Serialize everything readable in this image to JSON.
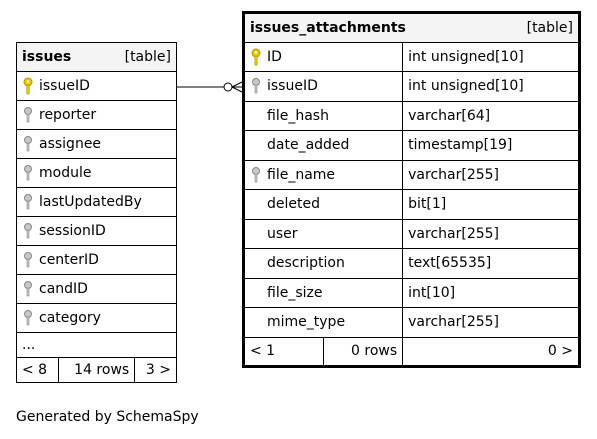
{
  "issues": {
    "name": "issues",
    "kind": "[table]",
    "columns": [
      "issueID",
      "reporter",
      "assignee",
      "module",
      "lastUpdatedBy",
      "sessionID",
      "centerID",
      "candID",
      "category"
    ],
    "more": "...",
    "footer": {
      "prev": "< 8",
      "rows": "14 rows",
      "next": "3 >"
    }
  },
  "issues_attachments": {
    "name": "issues_attachments",
    "kind": "[table]",
    "columns": [
      {
        "name": "ID",
        "type": "int unsigned[10]",
        "icon": "primary-key"
      },
      {
        "name": "issueID",
        "type": "int unsigned[10]",
        "icon": "foreign-key"
      },
      {
        "name": "file_hash",
        "type": "varchar[64]",
        "icon": "none"
      },
      {
        "name": "date_added",
        "type": "timestamp[19]",
        "icon": "none"
      },
      {
        "name": "file_name",
        "type": "varchar[255]",
        "icon": "foreign-key"
      },
      {
        "name": "deleted",
        "type": "bit[1]",
        "icon": "none"
      },
      {
        "name": "user",
        "type": "varchar[255]",
        "icon": "none"
      },
      {
        "name": "description",
        "type": "text[65535]",
        "icon": "none"
      },
      {
        "name": "file_size",
        "type": "int[10]",
        "icon": "none"
      },
      {
        "name": "mime_type",
        "type": "varchar[255]",
        "icon": "none"
      }
    ],
    "footer": {
      "prev": "< 1",
      "rows": "0 rows",
      "next": "0 >"
    }
  },
  "colors": {
    "primary_key": "#e6c800",
    "foreign_key": "#9a9a9a",
    "header_bg": "#f4f4f4"
  },
  "generated_by": "Generated by SchemaSpy"
}
